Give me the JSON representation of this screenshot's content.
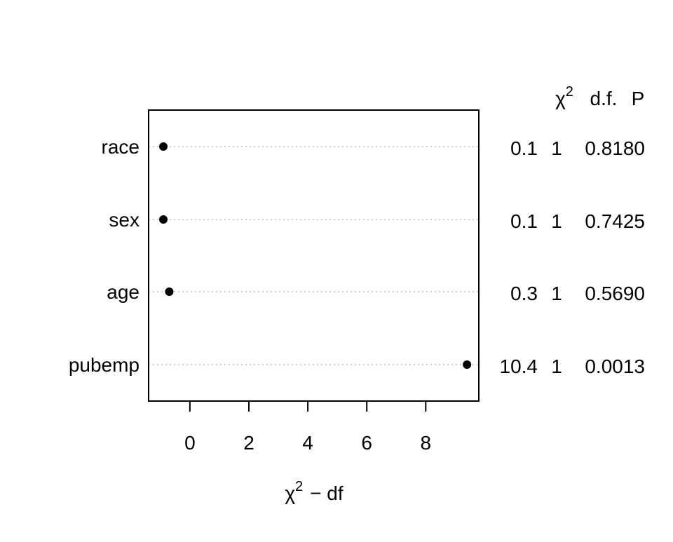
{
  "chart_data": {
    "type": "scatter",
    "style": "dot-chart",
    "xlabel": {
      "symbol": "χ",
      "superscript": "2",
      "rest": "− df"
    },
    "xlim": [
      -1.4,
      9.8
    ],
    "xticks": [
      "0",
      "2",
      "4",
      "6",
      "8"
    ],
    "grid": "horizontal dotted guide lines",
    "categories": [
      "race",
      "sex",
      "age",
      "pubemp"
    ],
    "values": [
      -0.9,
      -0.9,
      -0.7,
      9.4
    ],
    "table": {
      "header": {
        "chi_symbol": "χ",
        "chi_superscript": "2",
        "df": "d.f.",
        "p": "P"
      },
      "rows": [
        {
          "chi2": "0.1",
          "df": "1",
          "p": "0.8180"
        },
        {
          "chi2": "0.1",
          "df": "1",
          "p": "0.7425"
        },
        {
          "chi2": "0.3",
          "df": "1",
          "p": "0.5690"
        },
        {
          "chi2": "10.4",
          "df": "1",
          "p": "0.0013"
        }
      ]
    },
    "colors": {
      "points": "#000000",
      "guides": "#bebebe",
      "frame": "#000000"
    }
  }
}
